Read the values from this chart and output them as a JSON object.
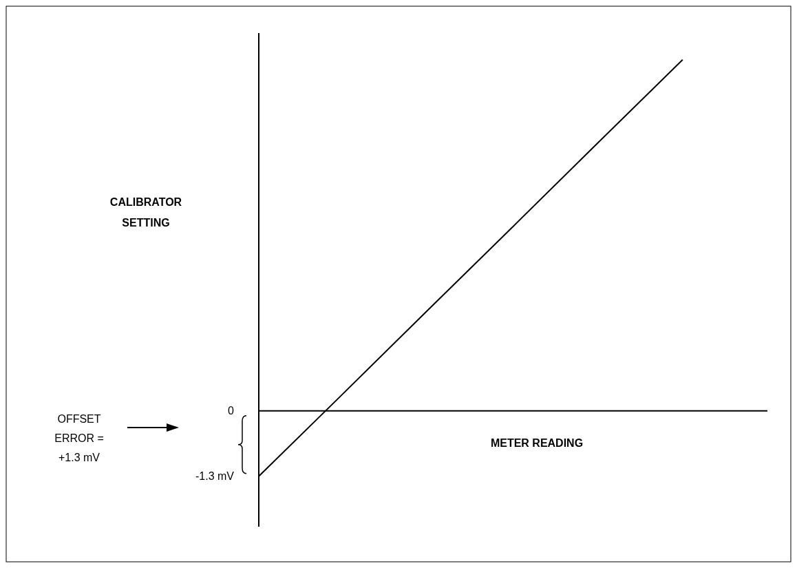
{
  "chart_data": {
    "type": "line",
    "ylabel": "CALIBRATOR\nSETTING",
    "xlabel": "METER READING",
    "categories": [
      null,
      null,
      null,
      null,
      null,
      null,
      null
    ],
    "series": [
      {
        "color": "#000000",
        "values": [
          -1.3,
          0.35,
          2.01,
          3.66,
          5.32,
          6.97,
          null
        ]
      }
    ],
    "ylim": [
      -2.3,
      7.5
    ],
    "yticks": [
      0,
      {
        "value": -1.3,
        "label": "-1.3 mV"
      }
    ],
    "tick_labels": "y",
    "annotations": [
      "OFFSET\nERROR =\n+1.3 mV"
    ]
  }
}
